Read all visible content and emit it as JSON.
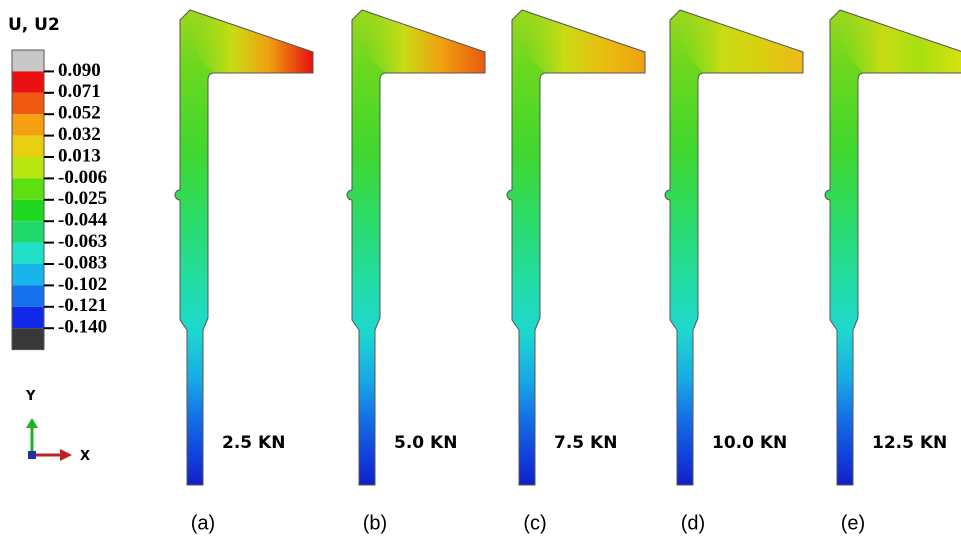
{
  "legend": {
    "title": "U, U2",
    "labels": [
      "0.090",
      "0.071",
      "0.052",
      "0.032",
      "0.013",
      "-0.006",
      "-0.025",
      "-0.044",
      "-0.063",
      "-0.083",
      "-0.102",
      "-0.121",
      "-0.140"
    ]
  },
  "axes": {
    "y": "Y",
    "x": "X"
  },
  "panels": [
    {
      "load": "2.5 KN",
      "caption": "(a)"
    },
    {
      "load": "5.0 KN",
      "caption": "(b)"
    },
    {
      "load": "7.5 KN",
      "caption": "(c)"
    },
    {
      "load": "10.0 KN",
      "caption": "(d)"
    },
    {
      "load": "12.5 KN",
      "caption": "(e)"
    }
  ]
}
